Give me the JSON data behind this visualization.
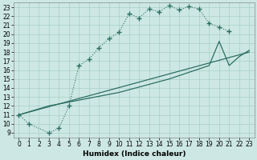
{
  "xlabel": "Humidex (Indice chaleur)",
  "bg_color": "#cde8e4",
  "line_color": "#2d6e63",
  "xlim": [
    -0.5,
    23.5
  ],
  "ylim": [
    8.5,
    23.5
  ],
  "xticks": [
    0,
    1,
    2,
    3,
    4,
    5,
    6,
    7,
    8,
    9,
    10,
    11,
    12,
    13,
    14,
    15,
    16,
    17,
    18,
    19,
    20,
    21,
    22,
    23
  ],
  "yticks": [
    9,
    10,
    11,
    12,
    13,
    14,
    15,
    16,
    17,
    18,
    19,
    20,
    21,
    22,
    23
  ],
  "curve_x": [
    0,
    1,
    3,
    4,
    5,
    6,
    7,
    8,
    9,
    10,
    11,
    12,
    13,
    14,
    15,
    16,
    17,
    18,
    19,
    20,
    21
  ],
  "curve_y": [
    11,
    10,
    9,
    9.5,
    12,
    16.5,
    17.2,
    18.5,
    19.5,
    20.2,
    22.3,
    21.8,
    22.8,
    22.5,
    23.2,
    22.7,
    23.1,
    22.8,
    21.2,
    20.8,
    20.3
  ],
  "line2_x": [
    0,
    23
  ],
  "line2_y": [
    11,
    18
  ],
  "line3_x": [
    0,
    3,
    10,
    15,
    19,
    20,
    21,
    22,
    23
  ],
  "line3_y": [
    11,
    12,
    13.5,
    15,
    16.5,
    19.2,
    16.5,
    17.5,
    18.2
  ],
  "tick_fontsize": 5.5,
  "xlabel_fontsize": 6.5
}
